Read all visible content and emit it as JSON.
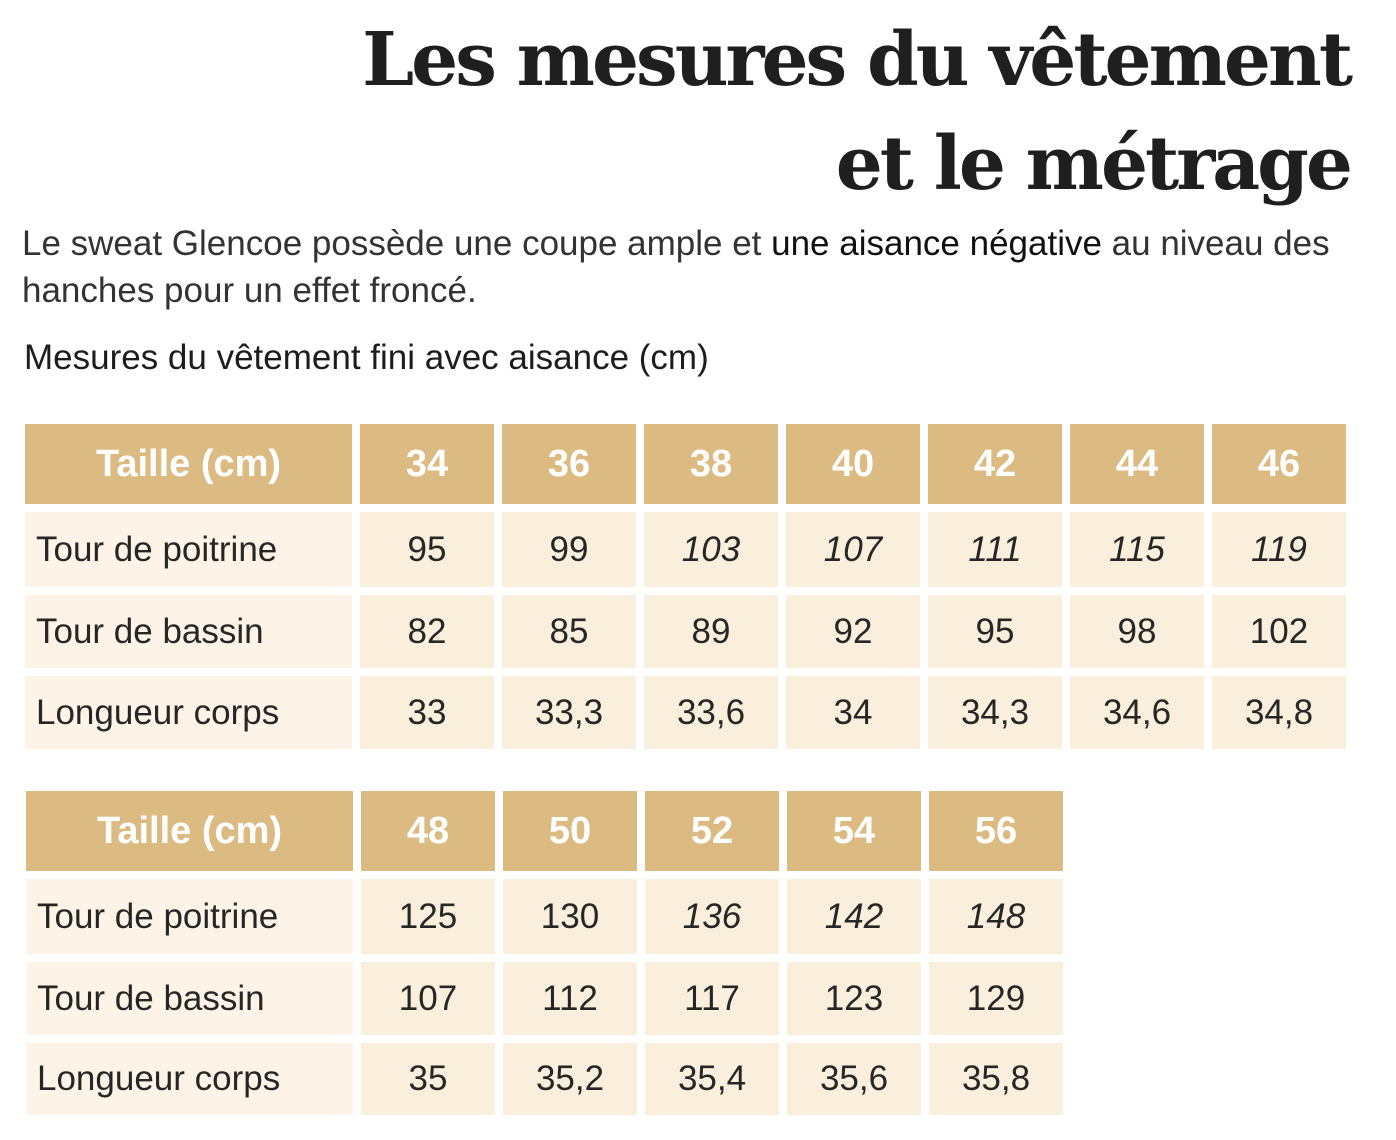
{
  "title_line1": "Les mesures du vêtement",
  "title_line2": "et le métrage",
  "intro": {
    "before": "Le sweat Glencoe possède une coupe ample et ",
    "emphasis": "une aisance négative",
    "after": " au niveau des hanches pour un effet froncé."
  },
  "subtitle": "Mesures du vêtement fini avec aisance (cm)",
  "colors": {
    "header": "#dcbb82",
    "label_cell": "#fdf4e7",
    "value_cell": "#faefdc"
  },
  "tables": [
    {
      "header": "Taille (cm)",
      "sizes": [
        "34",
        "36",
        "38",
        "40",
        "42",
        "44",
        "46"
      ],
      "rows": [
        {
          "label": "Tour de poitrine",
          "values": [
            "95",
            "99",
            "103",
            "107",
            "111",
            "115",
            "119"
          ],
          "italic": [
            false,
            false,
            true,
            true,
            true,
            true,
            true
          ]
        },
        {
          "label": "Tour de bassin",
          "values": [
            "82",
            "85",
            "89",
            "92",
            "95",
            "98",
            "102"
          ],
          "italic": [
            false,
            false,
            false,
            false,
            false,
            false,
            false
          ]
        },
        {
          "label": "Longueur corps",
          "values": [
            "33",
            "33,3",
            "33,6",
            "34",
            "34,3",
            "34,6",
            "34,8"
          ],
          "italic": [
            false,
            false,
            false,
            false,
            false,
            false,
            false
          ]
        }
      ]
    },
    {
      "header": "Taille (cm)",
      "sizes": [
        "48",
        "50",
        "52",
        "54",
        "56"
      ],
      "rows": [
        {
          "label": "Tour de poitrine",
          "values": [
            "125",
            "130",
            "136",
            "142",
            "148"
          ],
          "italic": [
            false,
            false,
            true,
            true,
            true
          ]
        },
        {
          "label": "Tour de bassin",
          "values": [
            "107",
            "112",
            "117",
            "123",
            "129"
          ],
          "italic": [
            false,
            false,
            false,
            false,
            false
          ]
        },
        {
          "label": "Longueur corps",
          "values": [
            "35",
            "35,2",
            "35,4",
            "35,6",
            "35,8"
          ],
          "italic": [
            false,
            false,
            false,
            false,
            false
          ]
        }
      ]
    }
  ]
}
